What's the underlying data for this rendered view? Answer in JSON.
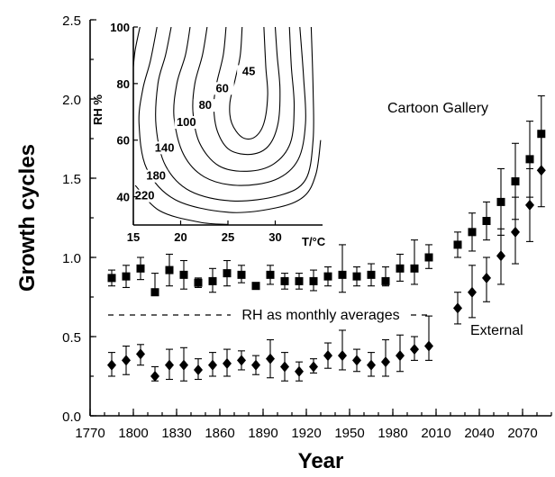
{
  "chart_data": [
    {
      "type": "scatter",
      "title": "",
      "xlabel": "Year",
      "ylabel": "Growth cycles",
      "xlim": [
        1770,
        2090
      ],
      "ylim": [
        0.0,
        2.5
      ],
      "xticks": [
        "1770",
        "1800",
        "1830",
        "1860",
        "1890",
        "1920",
        "1950",
        "1980",
        "2010",
        "2040",
        "2070"
      ],
      "yticks": [
        "0.0",
        "0.5",
        "1.0",
        "1.5",
        "2.0",
        "2.5"
      ],
      "annotations": {
        "cartoon_gallery": "Cartoon Gallery",
        "external": "External",
        "rh_note": "RH as monthly averages"
      },
      "series": [
        {
          "name": "Cartoon Gallery",
          "marker": "square",
          "points": [
            {
              "x": 1785,
              "y": 0.87,
              "lo": 0.82,
              "hi": 0.92
            },
            {
              "x": 1795,
              "y": 0.88,
              "lo": 0.81,
              "hi": 0.95
            },
            {
              "x": 1805,
              "y": 0.93,
              "lo": 0.86,
              "hi": 1.0
            },
            {
              "x": 1815,
              "y": 0.78,
              "lo": 0.78,
              "hi": 0.9
            },
            {
              "x": 1825,
              "y": 0.92,
              "lo": 0.82,
              "hi": 1.02
            },
            {
              "x": 1835,
              "y": 0.89,
              "lo": 0.8,
              "hi": 0.98
            },
            {
              "x": 1845,
              "y": 0.84,
              "lo": 0.81,
              "hi": 0.87
            },
            {
              "x": 1855,
              "y": 0.85,
              "lo": 0.78,
              "hi": 0.93
            },
            {
              "x": 1865,
              "y": 0.9,
              "lo": 0.82,
              "hi": 0.98
            },
            {
              "x": 1875,
              "y": 0.89,
              "lo": 0.84,
              "hi": 0.95
            },
            {
              "x": 1885,
              "y": 0.82,
              "lo": 0.8,
              "hi": 0.84
            },
            {
              "x": 1895,
              "y": 0.89,
              "lo": 0.83,
              "hi": 0.95
            },
            {
              "x": 1905,
              "y": 0.85,
              "lo": 0.8,
              "hi": 0.9
            },
            {
              "x": 1915,
              "y": 0.85,
              "lo": 0.8,
              "hi": 0.9
            },
            {
              "x": 1925,
              "y": 0.85,
              "lo": 0.79,
              "hi": 0.92
            },
            {
              "x": 1935,
              "y": 0.88,
              "lo": 0.82,
              "hi": 0.94
            },
            {
              "x": 1945,
              "y": 0.89,
              "lo": 0.78,
              "hi": 1.08
            },
            {
              "x": 1955,
              "y": 0.88,
              "lo": 0.82,
              "hi": 0.94
            },
            {
              "x": 1965,
              "y": 0.89,
              "lo": 0.82,
              "hi": 0.96
            },
            {
              "x": 1975,
              "y": 0.85,
              "lo": 0.82,
              "hi": 0.94
            },
            {
              "x": 1985,
              "y": 0.93,
              "lo": 0.85,
              "hi": 1.02
            },
            {
              "x": 1995,
              "y": 0.93,
              "lo": 0.83,
              "hi": 1.11
            },
            {
              "x": 2005,
              "y": 1.0,
              "lo": 0.93,
              "hi": 1.08
            },
            {
              "x": 2025,
              "y": 1.08,
              "lo": 1.0,
              "hi": 1.16
            },
            {
              "x": 2035,
              "y": 1.16,
              "lo": 1.04,
              "hi": 1.28
            },
            {
              "x": 2045,
              "y": 1.23,
              "lo": 1.11,
              "hi": 1.35
            },
            {
              "x": 2055,
              "y": 1.35,
              "lo": 1.14,
              "hi": 1.56
            },
            {
              "x": 2065,
              "y": 1.48,
              "lo": 1.24,
              "hi": 1.72
            },
            {
              "x": 2075,
              "y": 1.62,
              "lo": 1.38,
              "hi": 1.86
            },
            {
              "x": 2083,
              "y": 1.78,
              "lo": 1.55,
              "hi": 2.02
            }
          ]
        },
        {
          "name": "External",
          "marker": "diamond",
          "points": [
            {
              "x": 1785,
              "y": 0.32,
              "lo": 0.25,
              "hi": 0.4
            },
            {
              "x": 1795,
              "y": 0.35,
              "lo": 0.26,
              "hi": 0.44
            },
            {
              "x": 1805,
              "y": 0.39,
              "lo": 0.32,
              "hi": 0.45
            },
            {
              "x": 1815,
              "y": 0.25,
              "lo": 0.22,
              "hi": 0.31
            },
            {
              "x": 1825,
              "y": 0.32,
              "lo": 0.23,
              "hi": 0.42
            },
            {
              "x": 1835,
              "y": 0.32,
              "lo": 0.22,
              "hi": 0.43
            },
            {
              "x": 1845,
              "y": 0.29,
              "lo": 0.23,
              "hi": 0.36
            },
            {
              "x": 1855,
              "y": 0.32,
              "lo": 0.25,
              "hi": 0.4
            },
            {
              "x": 1865,
              "y": 0.33,
              "lo": 0.25,
              "hi": 0.42
            },
            {
              "x": 1875,
              "y": 0.35,
              "lo": 0.29,
              "hi": 0.41
            },
            {
              "x": 1885,
              "y": 0.32,
              "lo": 0.26,
              "hi": 0.38
            },
            {
              "x": 1895,
              "y": 0.36,
              "lo": 0.24,
              "hi": 0.48
            },
            {
              "x": 1905,
              "y": 0.31,
              "lo": 0.22,
              "hi": 0.4
            },
            {
              "x": 1915,
              "y": 0.28,
              "lo": 0.22,
              "hi": 0.34
            },
            {
              "x": 1925,
              "y": 0.31,
              "lo": 0.27,
              "hi": 0.36
            },
            {
              "x": 1935,
              "y": 0.38,
              "lo": 0.3,
              "hi": 0.46
            },
            {
              "x": 1945,
              "y": 0.38,
              "lo": 0.29,
              "hi": 0.54
            },
            {
              "x": 1955,
              "y": 0.35,
              "lo": 0.28,
              "hi": 0.42
            },
            {
              "x": 1965,
              "y": 0.32,
              "lo": 0.25,
              "hi": 0.4
            },
            {
              "x": 1975,
              "y": 0.34,
              "lo": 0.25,
              "hi": 0.48
            },
            {
              "x": 1985,
              "y": 0.38,
              "lo": 0.28,
              "hi": 0.51
            },
            {
              "x": 1995,
              "y": 0.42,
              "lo": 0.35,
              "hi": 0.5
            },
            {
              "x": 2005,
              "y": 0.44,
              "lo": 0.35,
              "hi": 0.63
            },
            {
              "x": 2025,
              "y": 0.68,
              "lo": 0.58,
              "hi": 0.78
            },
            {
              "x": 2035,
              "y": 0.78,
              "lo": 0.62,
              "hi": 0.95
            },
            {
              "x": 2045,
              "y": 0.87,
              "lo": 0.72,
              "hi": 1.0
            },
            {
              "x": 2055,
              "y": 1.01,
              "lo": 0.83,
              "hi": 1.18
            },
            {
              "x": 2065,
              "y": 1.16,
              "lo": 0.96,
              "hi": 1.38
            },
            {
              "x": 2075,
              "y": 1.33,
              "lo": 1.1,
              "hi": 1.56
            },
            {
              "x": 2083,
              "y": 1.55,
              "lo": 1.32,
              "hi": 1.78
            }
          ]
        }
      ]
    },
    {
      "type": "contour",
      "title": "",
      "xlabel": "T/°C",
      "ylabel": "RH %",
      "xlim": [
        15,
        35
      ],
      "ylim": [
        30,
        100
      ],
      "xticks": [
        "15",
        "20",
        "25",
        "30"
      ],
      "yticks": [
        "40",
        "60",
        "80",
        "100"
      ],
      "contours": [
        {
          "label": "45",
          "points": [
            [
              26.5,
              100
            ],
            [
              26.3,
              90
            ],
            [
              25.8,
              82
            ],
            [
              25.2,
              73
            ],
            [
              25.4,
              66
            ],
            [
              26.5,
              61
            ],
            [
              27.8,
              61
            ],
            [
              28.8,
              66
            ],
            [
              29.2,
              76
            ],
            [
              29.0,
              86
            ],
            [
              28.8,
              100
            ]
          ]
        },
        {
          "label": "60",
          "points": [
            [
              24.8,
              100
            ],
            [
              24.5,
              90
            ],
            [
              23.8,
              80
            ],
            [
              23.5,
              72
            ],
            [
              23.9,
              63
            ],
            [
              25.2,
              56.5
            ],
            [
              27.5,
              55
            ],
            [
              29.3,
              58
            ],
            [
              30.3,
              66
            ],
            [
              30.5,
              78
            ],
            [
              30.2,
              90
            ],
            [
              30.0,
              100
            ]
          ]
        },
        {
          "label": "80",
          "points": [
            [
              22.8,
              100
            ],
            [
              22.3,
              90
            ],
            [
              21.5,
              80
            ],
            [
              21.3,
              70
            ],
            [
              22.0,
              59
            ],
            [
              24.0,
              51
            ],
            [
              27.0,
              49
            ],
            [
              29.8,
              51.5
            ],
            [
              31.6,
              59
            ],
            [
              32.0,
              72
            ],
            [
              31.7,
              86
            ],
            [
              31.5,
              100
            ]
          ]
        },
        {
          "label": "100",
          "points": [
            [
              21.0,
              100
            ],
            [
              20.5,
              90
            ],
            [
              19.6,
              80
            ],
            [
              19.3,
              68
            ],
            [
              20.3,
              55
            ],
            [
              22.5,
              47
            ],
            [
              26.0,
              44
            ],
            [
              30.0,
              46
            ],
            [
              32.4,
              53
            ],
            [
              33.2,
              66
            ],
            [
              33.0,
              82
            ],
            [
              32.6,
              100
            ]
          ]
        },
        {
          "label": "140",
          "points": [
            [
              19.0,
              100
            ],
            [
              18.4,
              90
            ],
            [
              17.6,
              80
            ],
            [
              17.4,
              65
            ],
            [
              18.4,
              51
            ],
            [
              21.0,
              42
            ],
            [
              25.5,
              38.5
            ],
            [
              30.5,
              40.5
            ],
            [
              33.2,
              46
            ],
            [
              34.0,
              60
            ],
            [
              34.0,
              78
            ],
            [
              33.8,
              100
            ]
          ]
        },
        {
          "label": "180",
          "points": [
            [
              17.5,
              100
            ],
            [
              16.8,
              88
            ],
            [
              16.0,
              78
            ],
            [
              15.6,
              66
            ],
            [
              16.4,
              50
            ],
            [
              19.4,
              39
            ],
            [
              25.0,
              34.5
            ],
            [
              30.0,
              36
            ],
            [
              33.0,
              40
            ],
            [
              34.3,
              48
            ],
            [
              34.8,
              60
            ]
          ]
        },
        {
          "label": "220",
          "points": [
            [
              15.7,
              100
            ],
            [
              15.2,
              92
            ],
            [
              15.0,
              86
            ]
          ]
        },
        {
          "label": "",
          "points": [
            [
              15.2,
              44
            ],
            [
              17.8,
              35
            ],
            [
              22.0,
              31
            ],
            [
              25.0,
              30.2
            ]
          ]
        }
      ]
    }
  ]
}
